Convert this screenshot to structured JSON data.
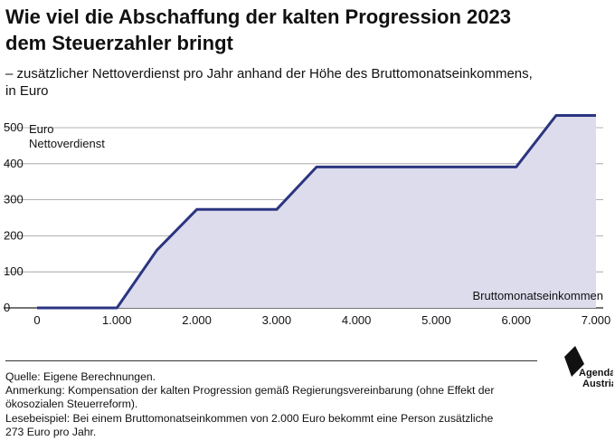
{
  "title_line1": "Wie viel die Abschaffung der kalten Progression 2023",
  "title_line2": "dem Steuerzahler bringt",
  "subtitle_line1": "– zusätzlicher Nettoverdienst pro Jahr anhand der Höhe des Bruttomonatseinkommens,",
  "subtitle_line2": "in Euro",
  "notes": {
    "source": "Quelle: Eigene Berechnungen.",
    "remark_line1": "Anmerkung: Kompensation der kalten Progression gemäß Regierungsvereinbarung (ohne Effekt der",
    "remark_line2": "ökosozialen Steuerreform).",
    "example_line1": "Lesebeispiel: Bei einem Bruttomonatseinkommen von 2.000 Euro bekommt eine Person zusätzliche",
    "example_line2": "273 Euro pro Jahr."
  },
  "logo": {
    "line1": "Agenda",
    "line2": "Austria"
  },
  "colors": {
    "line": "#2b3580",
    "area": "#dcdcec",
    "grid": "#9a9a9a"
  },
  "chart_data": {
    "type": "area",
    "title": "Wie viel die Abschaffung der kalten Progression 2023 dem Steuerzahler bringt",
    "subtitle": "– zusätzlicher Nettoverdienst pro Jahr anhand der Höhe des Bruttomonatseinkommens, in Euro",
    "xlabel": "Bruttomonatseinkommen",
    "ylabel_line1": "Euro",
    "ylabel_line2": "Nettoverdienst",
    "xlim": [
      0,
      7000
    ],
    "ylim": [
      0,
      500
    ],
    "x_ticks": [
      0,
      1000,
      2000,
      3000,
      4000,
      5000,
      6000,
      7000
    ],
    "x_tick_labels": [
      "0",
      "1.000",
      "2.000",
      "3.000",
      "4.000",
      "5.000",
      "6.000",
      "7.000"
    ],
    "y_ticks": [
      0,
      100,
      200,
      300,
      400,
      500
    ],
    "y_tick_labels": [
      "0",
      "100",
      "200",
      "300",
      "400",
      "500"
    ],
    "grid": true,
    "x": [
      0,
      1000,
      1500,
      2000,
      3000,
      3500,
      6000,
      6500,
      7000
    ],
    "y": [
      0,
      0,
      160,
      273,
      273,
      391,
      391,
      534,
      534
    ]
  }
}
